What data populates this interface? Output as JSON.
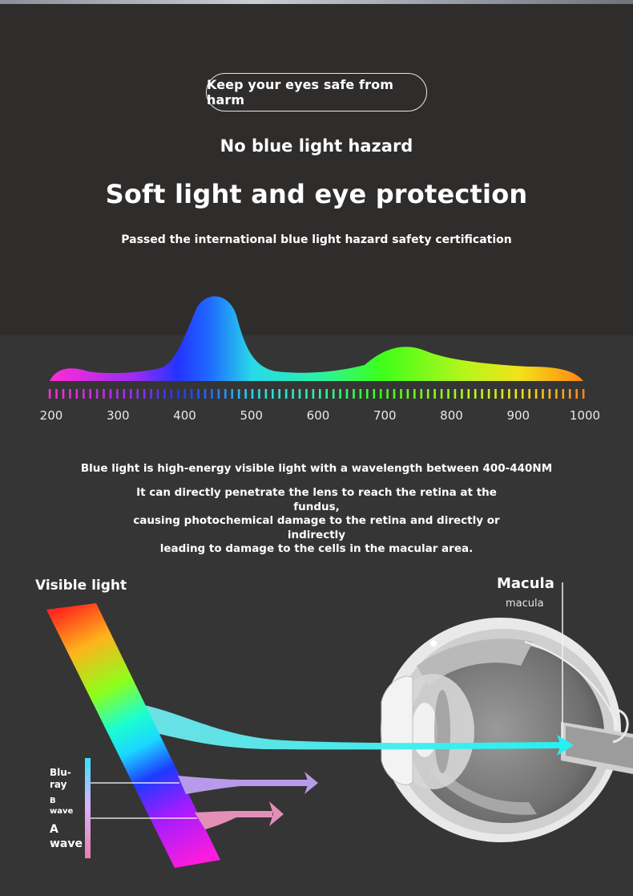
{
  "header": {
    "pill": "Keep your eyes safe from harm",
    "subheading": "No blue light hazard",
    "title": "Soft light and eye protection",
    "certification": "Passed the international blue light hazard safety certification"
  },
  "spectrum": {
    "ticks": [
      "200",
      "300",
      "400",
      "500",
      "600",
      "700",
      "800",
      "900",
      "1000"
    ],
    "range": [
      200,
      1000
    ],
    "colors": {
      "violet": "#ff2bd6",
      "blue": "#1f4dff",
      "cyan": "#2ae4e8",
      "green": "#3cff1a",
      "yellow": "#f2f01a",
      "orange": "#ff8c12"
    }
  },
  "description": {
    "line1": "Blue light is high-energy visible light with a wavelength between 400-440NM",
    "para": [
      "It can directly penetrate the lens to reach the retina at the fundus,",
      "causing photochemical damage to the retina and directly or indirectly",
      "leading to damage to the cells in the macular area."
    ]
  },
  "diagram": {
    "visible_light": "Visible light",
    "macula_title": "Macula",
    "macula_sub": "macula",
    "labels": {
      "blu": [
        "Blu-",
        "ray"
      ],
      "b": [
        "B",
        "wave"
      ],
      "a": [
        "A",
        "wave"
      ]
    },
    "icons": [
      "eye-cross-section-icon",
      "prism-band-icon",
      "arrow-icon"
    ]
  }
}
